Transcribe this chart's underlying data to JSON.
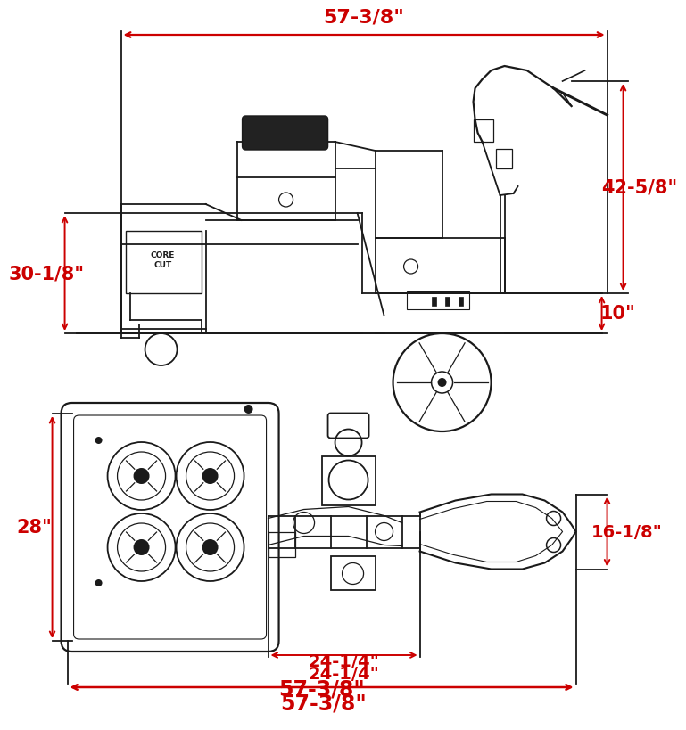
{
  "bg_color": "#ffffff",
  "line_color": "#1a1a1a",
  "dim_color": "#cc0000",
  "fig_width": 6.96,
  "fig_height": 8.0,
  "top_view": {
    "label_57_top": "57-3/8\"",
    "label_42": "42-5/8\"",
    "label_30": "30-1/8\"",
    "label_10": "10\""
  },
  "bottom_view": {
    "label_28": "28\"",
    "label_16": "16-1/8\"",
    "label_24": "24-1/4\"",
    "label_57_bot": "57-3/8\""
  }
}
